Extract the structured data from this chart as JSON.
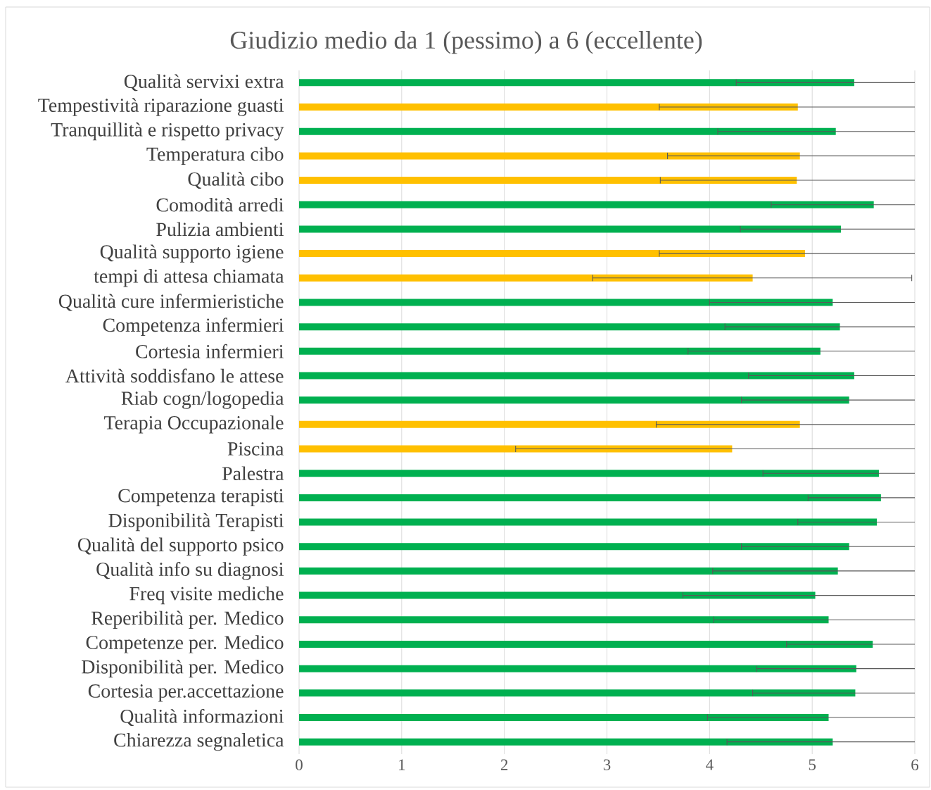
{
  "chart_data": {
    "type": "bar",
    "orientation": "horizontal",
    "title": "Giudizio medio da 1 (pessimo) a 6 (eccellente)",
    "categories": [
      "Qualità servixi extra",
      "Tempestività riparazione guasti",
      "Tranquillità e rispetto privacy",
      "Temperatura cibo",
      "Qualità cibo",
      "Comodità arredi",
      "Pulizia ambienti",
      "Qualità supporto igiene",
      "tempi di attesa chiamata",
      "Qualità cure infermieristiche",
      "Competenza infermieri",
      "Cortesia infermieri",
      "Attività soddisfano le attese",
      "Riab cogn/logopedia",
      "Terapia Occupazionale",
      "Piscina",
      "Palestra",
      "Competenza terapisti",
      "Disponibilità Terapisti",
      "Qualità del supporto psico",
      "Qualità info su diagnosi",
      "Freq visite mediche",
      "Reperibilità per. Medico",
      "Competenze per. Medico",
      "Disponibilità per. Medico",
      "Cortesia per.accettazione",
      "Qualità informazioni",
      "Chiarezza segnaletica"
    ],
    "values": [
      5.41,
      4.86,
      5.23,
      4.88,
      4.85,
      5.6,
      5.28,
      4.93,
      4.42,
      5.2,
      5.27,
      5.08,
      5.41,
      5.36,
      4.88,
      4.22,
      5.65,
      5.67,
      5.63,
      5.36,
      5.25,
      5.03,
      5.16,
      5.59,
      5.43,
      5.42,
      5.16,
      5.2
    ],
    "colors": [
      "#00b050",
      "#ffc000",
      "#00b050",
      "#ffc000",
      "#ffc000",
      "#00b050",
      "#00b050",
      "#ffc000",
      "#ffc000",
      "#00b050",
      "#00b050",
      "#00b050",
      "#00b050",
      "#00b050",
      "#ffc000",
      "#ffc000",
      "#00b050",
      "#00b050",
      "#00b050",
      "#00b050",
      "#00b050",
      "#00b050",
      "#00b050",
      "#00b050",
      "#00b050",
      "#00b050",
      "#00b050",
      "#00b050"
    ],
    "errors": [
      [
        4.26,
        6
      ],
      [
        3.51,
        6
      ],
      [
        4.08,
        6
      ],
      [
        3.59,
        6
      ],
      [
        3.52,
        6
      ],
      [
        4.6,
        6
      ],
      [
        4.3,
        6
      ],
      [
        3.51,
        6
      ],
      [
        2.86,
        5.97
      ],
      [
        4.0,
        6
      ],
      [
        4.15,
        6
      ],
      [
        3.79,
        6
      ],
      [
        4.38,
        6
      ],
      [
        4.31,
        6
      ],
      [
        3.48,
        6
      ],
      [
        2.11,
        6
      ],
      [
        4.52,
        6
      ],
      [
        4.96,
        6
      ],
      [
        4.86,
        6
      ],
      [
        4.31,
        6
      ],
      [
        4.03,
        6
      ],
      [
        3.74,
        6
      ],
      [
        4.04,
        6
      ],
      [
        4.75,
        6
      ],
      [
        4.46,
        6
      ],
      [
        4.42,
        6
      ],
      [
        3.98,
        6
      ],
      [
        4.17,
        6
      ]
    ],
    "xlim": [
      0,
      6
    ],
    "xticks": [
      0,
      1,
      2,
      3,
      4,
      5,
      6
    ],
    "grid": "x"
  }
}
